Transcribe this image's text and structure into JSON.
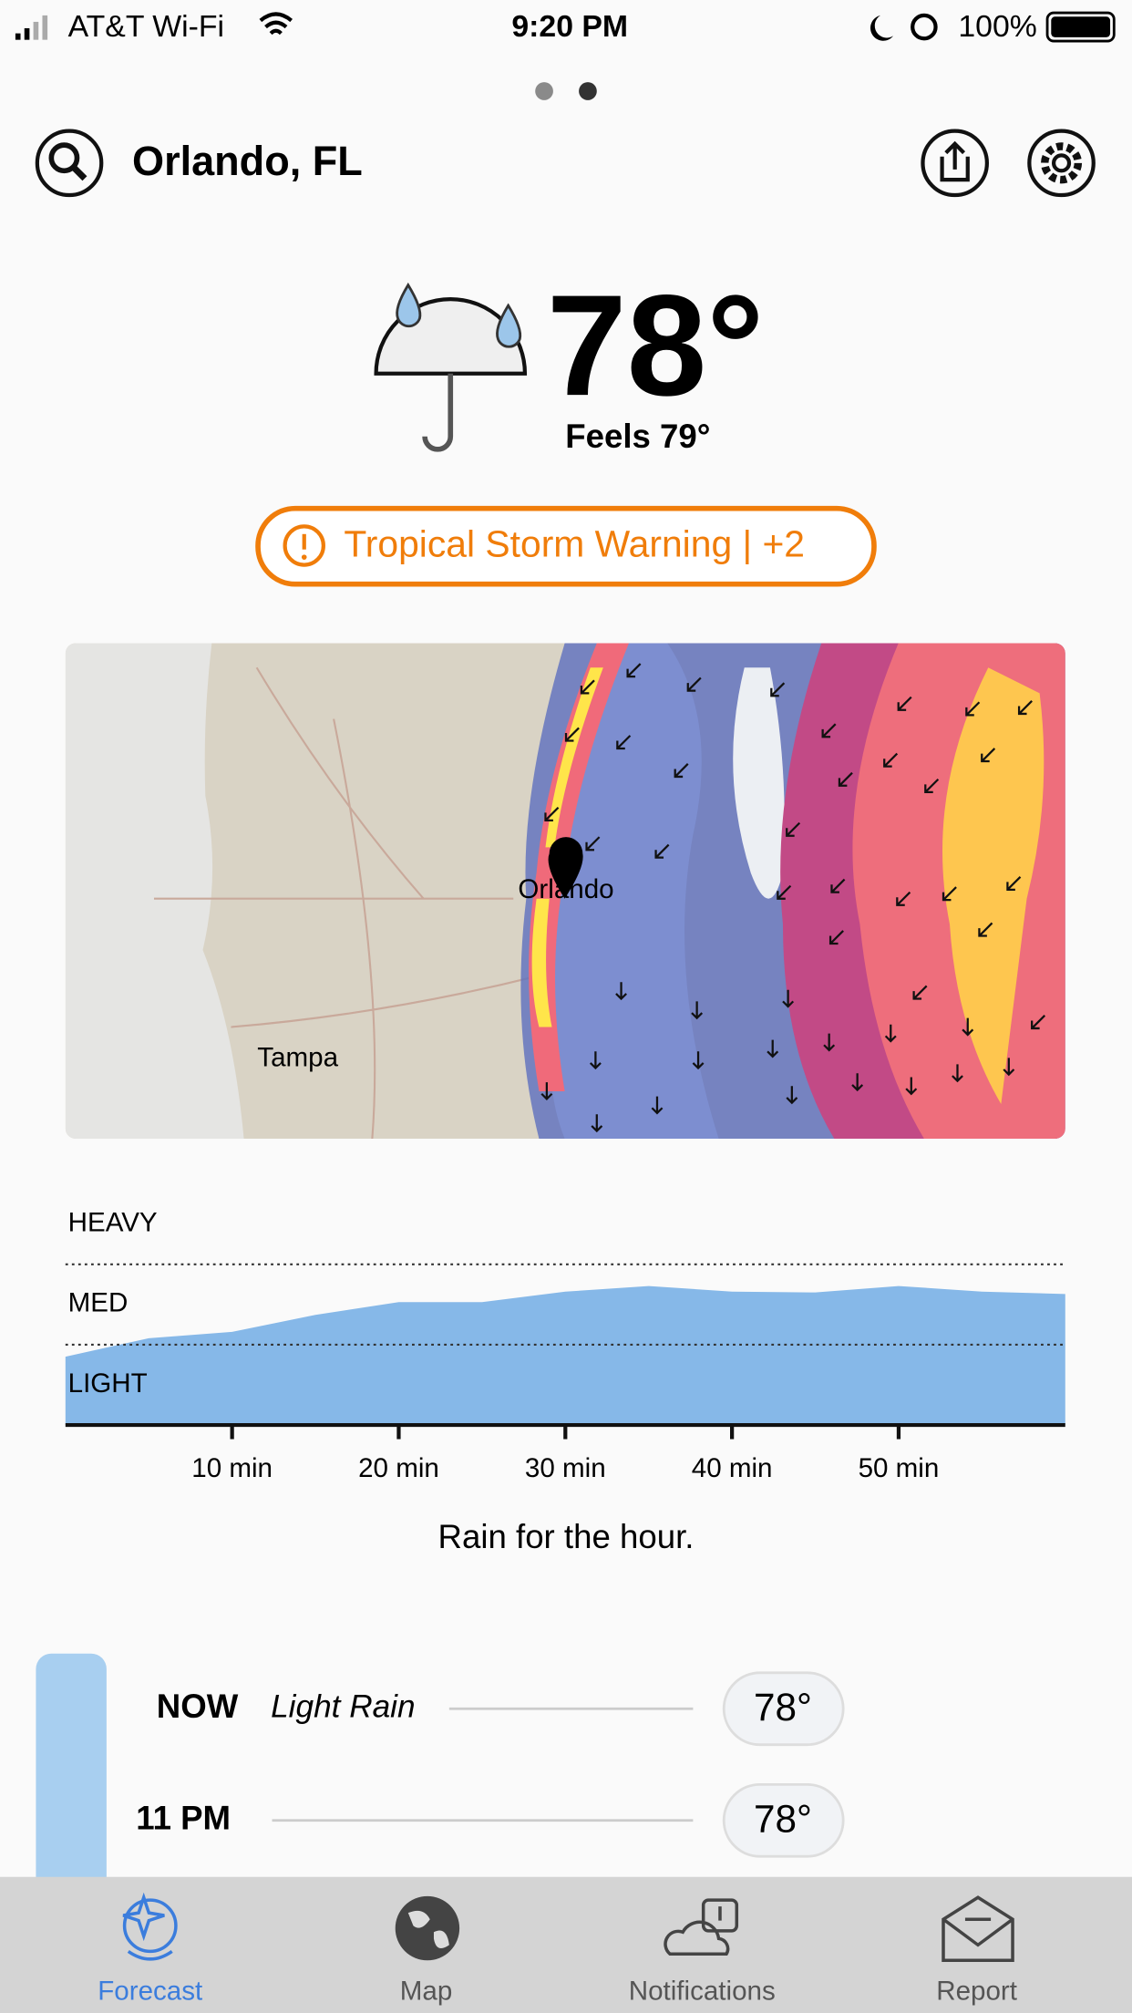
{
  "status_bar": {
    "carrier": "AT&T Wi-Fi",
    "time": "9:20 PM",
    "battery": "100%"
  },
  "header": {
    "location": "Orlando, FL"
  },
  "current": {
    "temperature": "78°",
    "feels_like": "Feels 79°",
    "alert": "Tropical Storm Warning | +2"
  },
  "map": {
    "labels": [
      "Orlando",
      "Tampa"
    ]
  },
  "rain_chart": {
    "type": "area",
    "levels": [
      "HEAVY",
      "MED",
      "LIGHT"
    ],
    "thresholds": [
      1,
      2
    ],
    "x": [
      0,
      5,
      10,
      15,
      20,
      25,
      30,
      35,
      40,
      45,
      50,
      55,
      60
    ],
    "values": [
      0.85,
      1.08,
      1.16,
      1.37,
      1.53,
      1.53,
      1.66,
      1.73,
      1.66,
      1.65,
      1.73,
      1.66,
      1.63
    ],
    "xlim": [
      0,
      60
    ],
    "ylim": [
      0,
      2.7
    ],
    "xticks": [
      {
        "value": 10,
        "label": "10 min"
      },
      {
        "value": 20,
        "label": "20 min"
      },
      {
        "value": 30,
        "label": "30 min"
      },
      {
        "value": 40,
        "label": "40 min"
      },
      {
        "value": 50,
        "label": "50 min"
      }
    ],
    "color": "#86b8e8",
    "caption": "Rain for the hour."
  },
  "hourly": [
    {
      "time": "NOW",
      "condition": "Light Rain",
      "temperature": "78°"
    },
    {
      "time": "11 PM",
      "temperature": "78°"
    }
  ],
  "tabs": [
    {
      "label": "Forecast",
      "active": true
    },
    {
      "label": "Map",
      "active": false
    },
    {
      "label": "Notifications",
      "active": false
    },
    {
      "label": "Report",
      "active": false
    }
  ]
}
